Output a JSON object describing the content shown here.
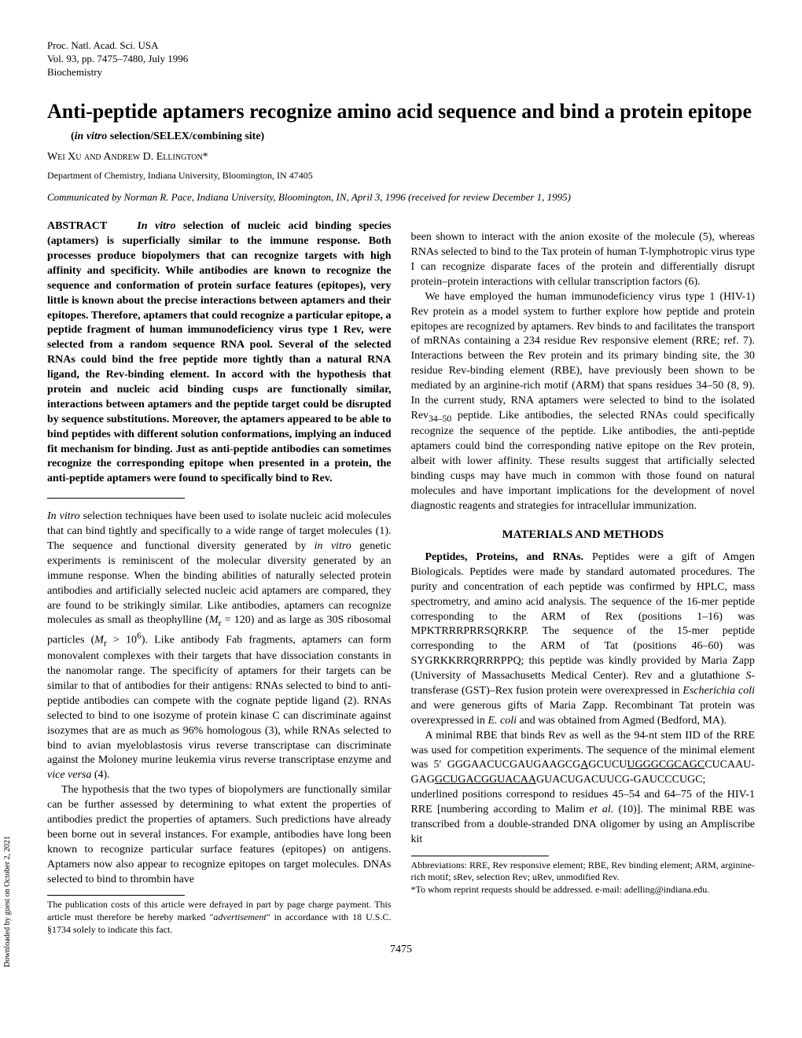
{
  "header": {
    "journal": "Proc. Natl. Acad. Sci. USA",
    "volume": "Vol. 93, pp. 7475–7480, July 1996",
    "category": "Biochemistry"
  },
  "title": "Anti-peptide aptamers recognize amino acid sequence and bind a protein epitope",
  "subtitle": "(in vitro selection/SELEX/combining site)",
  "authors": "Wei Xu and Andrew D. Ellington*",
  "affiliation": "Department of Chemistry, Indiana University, Bloomington, IN 47405",
  "communicated": "Communicated by Norman R. Pace, Indiana University, Bloomington, IN, April 3, 1996 (received for review December 1, 1995)",
  "abstract": {
    "label": "ABSTRACT",
    "text": "In vitro selection of nucleic acid binding species (aptamers) is superficially similar to the immune response. Both processes produce biopolymers that can recognize targets with high affinity and specificity. While antibodies are known to recognize the sequence and conformation of protein surface features (epitopes), very little is known about the precise interactions between aptamers and their epitopes. Therefore, aptamers that could recognize a particular epitope, a peptide fragment of human immunodeficiency virus type 1 Rev, were selected from a random sequence RNA pool. Several of the selected RNAs could bind the free peptide more tightly than a natural RNA ligand, the Rev-binding element. In accord with the hypothesis that protein and nucleic acid binding cusps are functionally similar, interactions between aptamers and the peptide target could be disrupted by sequence substitutions. Moreover, the aptamers appeared to be able to bind peptides with different solution conformations, implying an induced fit mechanism for binding. Just as anti-peptide antibodies can sometimes recognize the corresponding epitope when presented in a protein, the anti-peptide aptamers were found to specifically bind to Rev."
  },
  "body": {
    "intro1": "In vitro selection techniques have been used to isolate nucleic acid molecules that can bind tightly and specifically to a wide range of target molecules (1). The sequence and functional diversity generated by in vitro genetic experiments is reminiscent of the molecular diversity generated by an immune response. When the binding abilities of naturally selected protein antibodies and artificially selected nucleic acid aptamers are compared, they are found to be strikingly similar. Like antibodies, aptamers can recognize molecules as small as theophylline (Mr = 120) and as large as 30S ribosomal particles (Mr > 10⁶). Like antibody Fab fragments, aptamers can form monovalent complexes with their targets that have dissociation constants in the nanomolar range. The specificity of aptamers for their targets can be similar to that of antibodies for their antigens: RNAs selected to bind to anti-peptide antibodies can compete with the cognate peptide ligand (2). RNAs selected to bind to one isozyme of protein kinase C can discriminate against isozymes that are as much as 96% homologous (3), while RNAs selected to bind to avian myeloblastosis virus reverse transcriptase can discriminate against the Moloney murine leukemia virus reverse transcriptase enzyme and vice versa (4).",
    "intro2": "The hypothesis that the two types of biopolymers are functionally similar can be further assessed by determining to what extent the properties of antibodies predict the properties of aptamers. Such predictions have already been borne out in several instances. For example, antibodies have long been known to recognize particular surface features (epitopes) on antigens. Aptamers now also appear to recognize epitopes on target molecules. DNAs selected to bind to thrombin have",
    "intro3": "been shown to interact with the anion exosite of the molecule (5), whereas RNAs selected to bind to the Tax protein of human T-lymphotropic virus type I can recognize disparate faces of the protein and differentially disrupt protein–protein interactions with cellular transcription factors (6).",
    "intro4": "We have employed the human immunodeficiency virus type 1 (HIV-1) Rev protein as a model system to further explore how peptide and protein epitopes are recognized by aptamers. Rev binds to and facilitates the transport of mRNAs containing a 234 residue Rev responsive element (RRE; ref. 7). Interactions between the Rev protein and its primary binding site, the 30 residue Rev-binding element (RBE), have previously been shown to be mediated by an arginine-rich motif (ARM) that spans residues 34–50 (8, 9). In the current study, RNA aptamers were selected to bind to the isolated Rev34–50 peptide. Like antibodies, the selected RNAs could specifically recognize the sequence of the peptide. Like antibodies, the anti-peptide aptamers could bind the corresponding native epitope on the Rev protein, albeit with lower affinity. These results suggest that artificially selected binding cusps may have much in common with those found on natural molecules and have important implications for the development of novel diagnostic reagents and strategies for intracellular immunization."
  },
  "methods": {
    "header": "MATERIALS AND METHODS",
    "peptides_label": "Peptides, Proteins, and RNAs.",
    "peptides_text": "Peptides were a gift of Amgen Biologicals. Peptides were made by standard automated procedures. The purity and concentration of each peptide was confirmed by HPLC, mass spectrometry, and amino acid analysis. The sequence of the 16-mer peptide corresponding to the ARM of Rex (positions 1–16) was MPKTRRRPRRSQRKRP. The sequence of the 15-mer peptide corresponding to the ARM of Tat (positions 46–60) was SYGRKKRRQRRRPPQ; this peptide was kindly provided by Maria Zapp (University of Massachusetts Medical Center). Rev and a glutathione S-transferase (GST)–Rex fusion protein were overexpressed in Escherichia coli and were generous gifts of Maria Zapp. Recombinant Tat protein was overexpressed in E. coli and was obtained from Agmed (Bedford, MA).",
    "rbe_text": "A minimal RBE that binds Rev as well as the 94-nt stem IID of the RRE was used for competition experiments. The sequence of the minimal element was 5′ GGGAACUCGAUGAAGCGAGCUCUUUGGGCGCAGCCUCAAU-GAGGCUGACGGUACAAGUACUGACUUCG-GAUCCCUGC; underlined positions correspond to residues 45–54 and 64–75 of the HIV-1 RRE [numbering according to Malim et al. (10)]. The minimal RBE was transcribed from a double-stranded DNA oligomer by using an Ampliscribe kit"
  },
  "footnotes": {
    "left": "The publication costs of this article were defrayed in part by page charge payment. This article must therefore be hereby marked \"advertisement\" in accordance with 18 U.S.C. §1734 solely to indicate this fact.",
    "right_abbr": "Abbreviations: RRE, Rev responsive element; RBE, Rev binding element; ARM, arginine-rich motif; sRev, selection Rev; uRev, unmodified Rev.",
    "right_corr": "*To whom reprint requests should be addressed. e-mail: adelling@indiana.edu."
  },
  "page_number": "7475",
  "sidebar": "Downloaded by guest on October 2, 2021"
}
